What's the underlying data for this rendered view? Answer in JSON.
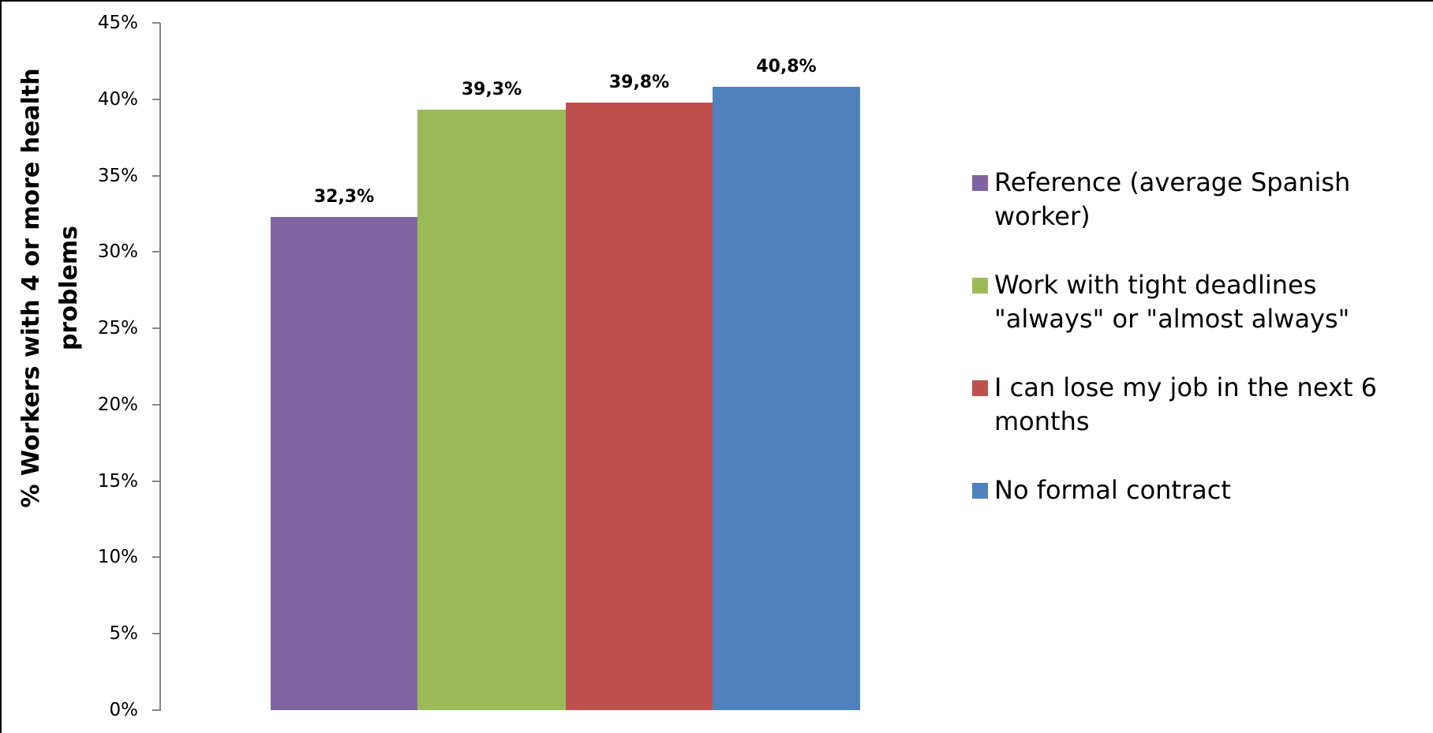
{
  "chart_data": {
    "type": "bar",
    "title": "",
    "xlabel": "",
    "ylabel": "% Workers with 4 or more health problems",
    "ylabel_lines": [
      "% Workers with 4 or more health",
      "problems"
    ],
    "ylim": [
      0,
      45
    ],
    "yticks": [
      "0%",
      "5%",
      "10%",
      "15%",
      "20%",
      "25%",
      "30%",
      "35%",
      "40%",
      "45%"
    ],
    "grid": false,
    "legend_position": "right",
    "categories": [
      ""
    ],
    "series": [
      {
        "name": "Reference (average Spanish worker)",
        "values": [
          32.3
        ],
        "label": "32,3%",
        "color": "#8064A2"
      },
      {
        "name": "Work with tight deadlines \"always\" or \"almost always\"",
        "values": [
          39.3
        ],
        "label": "39,3%",
        "color": "#9BBB59"
      },
      {
        "name": "I can lose my job in the next 6 months",
        "values": [
          39.8
        ],
        "label": "39,8%",
        "color": "#C0504D"
      },
      {
        "name": "No formal contract",
        "values": [
          40.8
        ],
        "label": "40,8%",
        "color": "#4F81BD"
      }
    ]
  },
  "legend": {
    "items": [
      {
        "lines": [
          "Reference (average Spanish",
          "worker)"
        ],
        "color": "#8064A2"
      },
      {
        "lines": [
          "Work with tight deadlines",
          "\"always\" or \"almost always\""
        ],
        "color": "#9BBB59"
      },
      {
        "lines": [
          "I can lose my job in the next 6",
          "months"
        ],
        "color": "#C0504D"
      },
      {
        "lines": [
          "No formal contract"
        ],
        "color": "#4F81BD"
      }
    ]
  },
  "axis": {
    "color": "#868686"
  }
}
